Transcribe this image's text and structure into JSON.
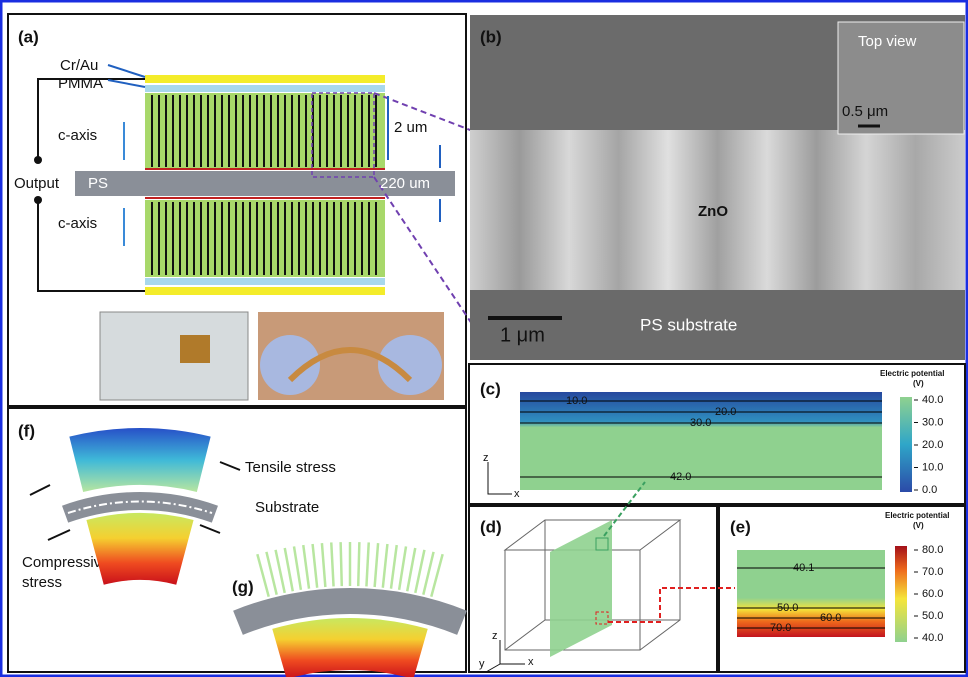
{
  "panels": {
    "a": {
      "label": "(a)",
      "cr_au": "Cr/Au",
      "pmma": "PMMA",
      "c_axis_top": "c-axis",
      "c_axis_bottom": "c-axis",
      "output": "Output",
      "ps": "PS",
      "nanowire_height": "2 um",
      "ps_thickness": "220 um"
    },
    "b": {
      "label": "(b)",
      "inset_title": "Top view",
      "inset_scale": "0.5 μm",
      "material": "ZnO",
      "scale": "1 μm",
      "substrate": "PS substrate"
    },
    "c": {
      "label": "(c)",
      "colorbar_title": "Electric potential",
      "colorbar_unit": "(V)",
      "colorbar_ticks": [
        "40.0",
        "30.0",
        "20.0",
        "10.0",
        "0.0"
      ],
      "contours": [
        "10.0",
        "20.0",
        "30.0",
        "42.0"
      ],
      "axis_z": "z",
      "axis_x": "x"
    },
    "d": {
      "label": "(d)",
      "axis_z": "z",
      "axis_x": "x",
      "axis_y": "y"
    },
    "e": {
      "label": "(e)",
      "colorbar_title": "Electric potential",
      "colorbar_unit": "(V)",
      "colorbar_ticks": [
        "80.0",
        "70.0",
        "60.0",
        "50.0",
        "40.0"
      ],
      "contours": [
        "40.1",
        "50.0",
        "60.0",
        "70.0"
      ]
    },
    "f": {
      "label": "(f)",
      "tensile": "Tensile stress",
      "substrate": "Substrate",
      "compressive_1": "Compressive",
      "compressive_2": "stress"
    },
    "g": {
      "label": "(g)"
    }
  }
}
